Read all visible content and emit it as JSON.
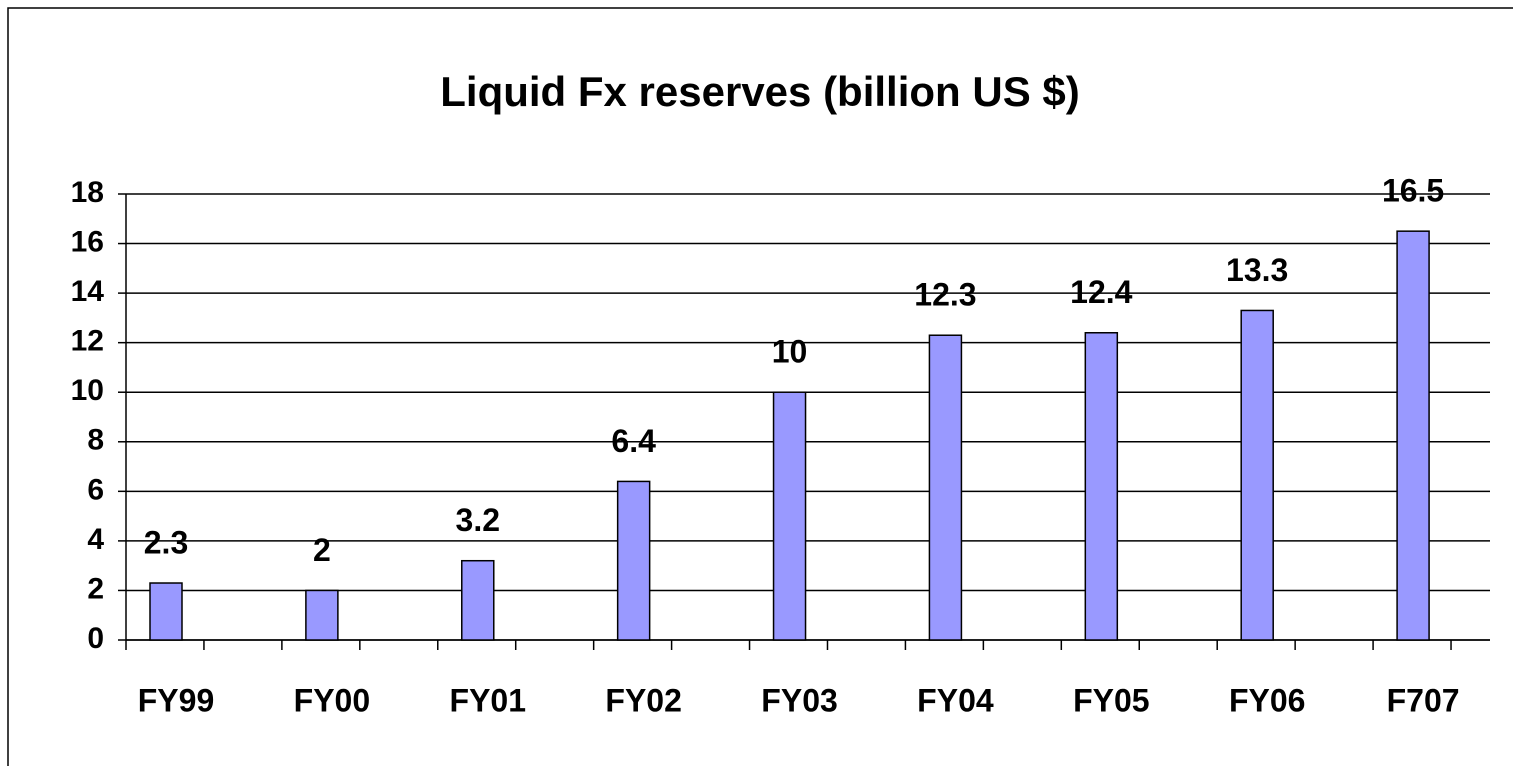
{
  "chart_data": {
    "type": "bar",
    "title": "Liquid Fx reserves (billion US $)",
    "categories": [
      "FY99",
      "FY00",
      "FY01",
      "FY02",
      "FY03",
      "FY04",
      "FY05",
      "FY06",
      "F707"
    ],
    "values": [
      2.3,
      2,
      3.2,
      6.4,
      10,
      12.3,
      12.4,
      13.3,
      16.5
    ],
    "color": "#9999ff",
    "ylim": [
      0,
      18
    ],
    "yticks": [
      0,
      2,
      4,
      6,
      8,
      10,
      12,
      14,
      16,
      18
    ],
    "grid": true
  }
}
